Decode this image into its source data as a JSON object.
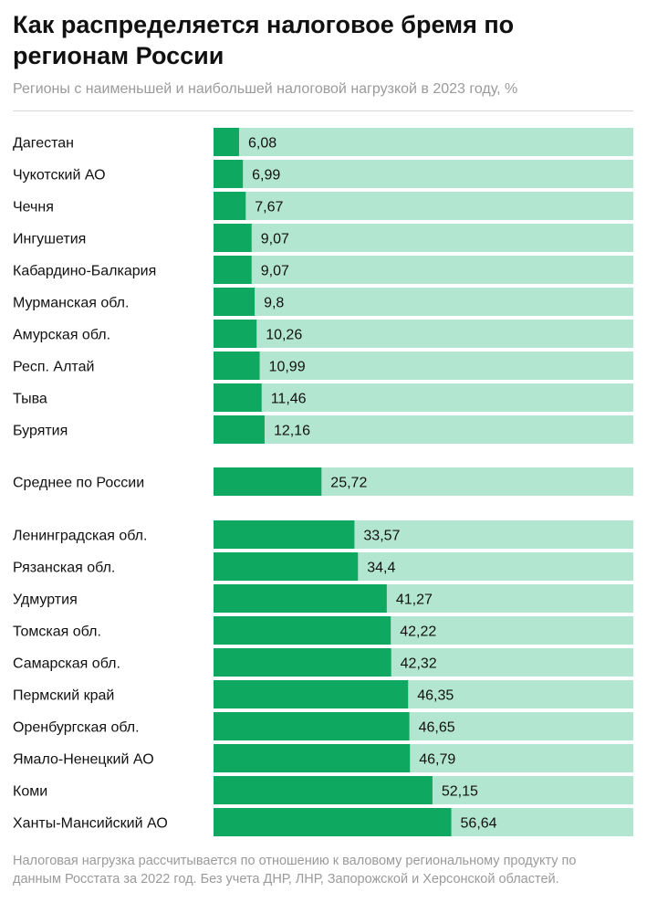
{
  "title": "Как распределяется налоговое бремя по регионам России",
  "subtitle": "Регионы с наименьшей и наибольшей налоговой нагрузкой в 2023 году, %",
  "footnote": "Налоговая нагрузка рассчитывается по отношению к валовому региональному продукту по данным Росстата за 2022 год. Без учета ДНР, ЛНР, Запорожской и Херсонской областей.",
  "colors": {
    "bar": "#0fa860",
    "track": "#b3e6d1",
    "text": "#111111",
    "muted": "#9a9a9a"
  },
  "chart_data": {
    "type": "bar",
    "orientation": "horizontal",
    "xlim": [
      0,
      100
    ],
    "groups": [
      {
        "categories": [
          "Дагестан",
          "Чукотский АО",
          "Чечня",
          "Ингушетия",
          "Кабардино-Балкария",
          "Мурманская обл.",
          "Амурская обл.",
          "Респ. Алтай",
          "Тыва",
          "Бурятия"
        ],
        "values": [
          6.08,
          6.99,
          7.67,
          9.07,
          9.07,
          9.8,
          10.26,
          10.99,
          11.46,
          12.16
        ],
        "value_labels": [
          "6,08",
          "6,99",
          "7,67",
          "9,07",
          "9,07",
          "9,8",
          "10,26",
          "10,99",
          "11,46",
          "12,16"
        ]
      },
      {
        "categories": [
          "Среднее по России"
        ],
        "values": [
          25.72
        ],
        "value_labels": [
          "25,72"
        ]
      },
      {
        "categories": [
          "Ленинградская обл.",
          "Рязанская обл.",
          "Удмуртия",
          "Томская обл.",
          "Самарская обл.",
          "Пермский край",
          "Оренбургская обл.",
          "Ямало-Ненецкий АО",
          "Коми",
          "Ханты-Мансийский АО"
        ],
        "values": [
          33.57,
          34.4,
          41.27,
          42.22,
          42.32,
          46.35,
          46.65,
          46.79,
          52.15,
          56.64
        ],
        "value_labels": [
          "33,57",
          "34,4",
          "41,27",
          "42,22",
          "42,32",
          "46,35",
          "46,65",
          "46,79",
          "52,15",
          "56,64"
        ]
      }
    ]
  }
}
